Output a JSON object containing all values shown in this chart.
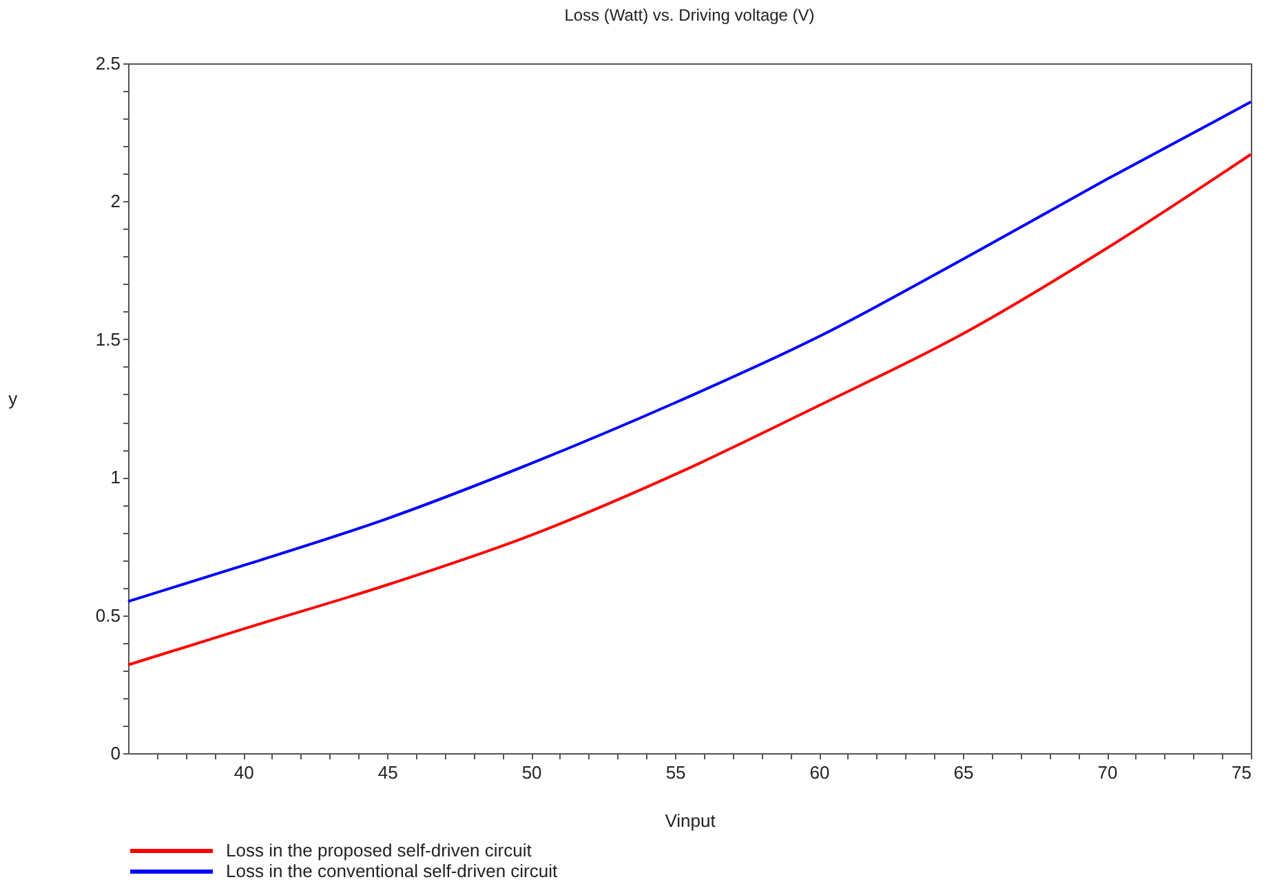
{
  "chart_data": {
    "type": "line",
    "title": "Loss (Watt) vs. Driving voltage (V)",
    "xlabel": "Vinput",
    "ylabel": "y",
    "x": [
      36,
      40,
      45,
      50,
      55,
      60,
      65,
      70,
      75
    ],
    "series": [
      {
        "name": "Loss in the proposed self-driven circuit",
        "color": "#ff0000",
        "values": [
          0.32,
          0.45,
          0.61,
          0.79,
          1.01,
          1.26,
          1.52,
          1.83,
          2.17
        ]
      },
      {
        "name": "Loss in the conventional self-driven circuit",
        "color": "#0000ff",
        "values": [
          0.55,
          0.68,
          0.85,
          1.05,
          1.27,
          1.51,
          1.79,
          2.08,
          2.36
        ]
      }
    ],
    "xlim": [
      36,
      75
    ],
    "ylim": [
      0,
      2.5
    ],
    "xticks": [
      {
        "value": 37,
        "label": null
      },
      {
        "value": 38,
        "label": null
      },
      {
        "value": 39,
        "label": null
      },
      40,
      {
        "value": 41,
        "label": null
      },
      {
        "value": 42,
        "label": null
      },
      {
        "value": 43,
        "label": null
      },
      {
        "value": 44,
        "label": null
      },
      45,
      {
        "value": 46,
        "label": null
      },
      {
        "value": 47,
        "label": null
      },
      {
        "value": 48,
        "label": null
      },
      {
        "value": 49,
        "label": null
      },
      50,
      {
        "value": 51,
        "label": null
      },
      {
        "value": 52,
        "label": null
      },
      {
        "value": 53,
        "label": null
      },
      {
        "value": 54,
        "label": null
      },
      55,
      {
        "value": 56,
        "label": null
      },
      {
        "value": 57,
        "label": null
      },
      {
        "value": 58,
        "label": null
      },
      {
        "value": 59,
        "label": null
      },
      60,
      {
        "value": 61,
        "label": null
      },
      {
        "value": 62,
        "label": null
      },
      {
        "value": 63,
        "label": null
      },
      {
        "value": 64,
        "label": null
      },
      65,
      {
        "value": 66,
        "label": null
      },
      {
        "value": 67,
        "label": null
      },
      {
        "value": 68,
        "label": null
      },
      {
        "value": 69,
        "label": null
      },
      70,
      {
        "value": 71,
        "label": null
      },
      {
        "value": 72,
        "label": null
      },
      {
        "value": 73,
        "label": null
      },
      {
        "value": 74,
        "label": null
      },
      75
    ],
    "yticks": [
      0,
      {
        "value": 0.1,
        "label": null
      },
      {
        "value": 0.2,
        "label": null
      },
      {
        "value": 0.3,
        "label": null
      },
      {
        "value": 0.4,
        "label": null
      },
      0.5,
      {
        "value": 0.6,
        "label": null
      },
      {
        "value": 0.7,
        "label": null
      },
      {
        "value": 0.8,
        "label": null
      },
      {
        "value": 0.9,
        "label": null
      },
      1,
      {
        "value": 1.1,
        "label": null
      },
      {
        "value": 1.2,
        "label": null
      },
      {
        "value": 1.3,
        "label": null
      },
      {
        "value": 1.4,
        "label": null
      },
      1.5,
      {
        "value": 1.6,
        "label": null
      },
      {
        "value": 1.7,
        "label": null
      },
      {
        "value": 1.8,
        "label": null
      },
      {
        "value": 1.9,
        "label": null
      },
      2,
      {
        "value": 2.1,
        "label": null
      },
      {
        "value": 2.2,
        "label": null
      },
      {
        "value": 2.3,
        "label": null
      },
      {
        "value": 2.4,
        "label": null
      },
      2.5
    ],
    "grid": false,
    "legend": "bottom",
    "line_style": "solid"
  }
}
